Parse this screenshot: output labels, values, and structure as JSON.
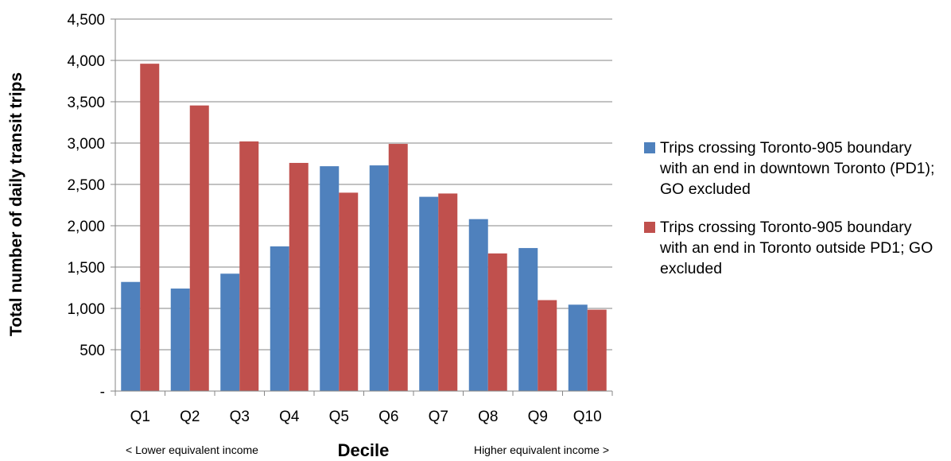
{
  "chart_data": {
    "type": "bar",
    "categories": [
      "Q1",
      "Q2",
      "Q3",
      "Q4",
      "Q5",
      "Q6",
      "Q7",
      "Q8",
      "Q9",
      "Q10"
    ],
    "series": [
      {
        "name": "Trips crossing Toronto-905 boundary with an end in downtown Toronto (PD1); GO excluded",
        "color": "#4F81BD",
        "values": [
          1320,
          1240,
          1420,
          1750,
          2720,
          2730,
          2350,
          2080,
          1730,
          1045
        ]
      },
      {
        "name": "Trips crossing Toronto-905 boundary with an end in Toronto outside PD1; GO excluded",
        "color": "#C0504D",
        "values": [
          3960,
          3455,
          3020,
          2760,
          2400,
          2990,
          2390,
          1665,
          1100,
          985
        ]
      }
    ],
    "title": "",
    "xlabel": "Decile",
    "xlabel_left_note": "< Lower equivalent income",
    "xlabel_right_note": "Higher equivalent income >",
    "ylabel": "Total number of daily transit trips",
    "ylim": [
      0,
      4500
    ],
    "yticks": [
      0,
      500,
      1000,
      1500,
      2000,
      2500,
      3000,
      3500,
      4000,
      4500
    ],
    "ytick_labels": [
      "-",
      "500",
      "1,000",
      "1,500",
      "2,000",
      "2,500",
      "3,000",
      "3,500",
      "4,000",
      "4,500"
    ],
    "grid": true,
    "legend_position": "right"
  }
}
